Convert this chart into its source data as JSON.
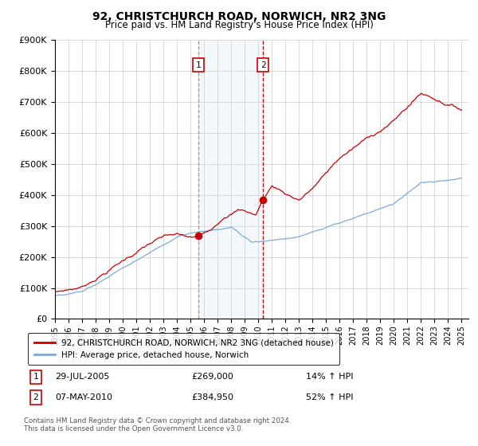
{
  "title": "92, CHRISTCHURCH ROAD, NORWICH, NR2 3NG",
  "subtitle": "Price paid vs. HM Land Registry's House Price Index (HPI)",
  "ylim": [
    0,
    900000
  ],
  "xlim_start": 1995.0,
  "xlim_end": 2025.5,
  "transaction1": {
    "date_num": 2005.57,
    "price": 269000,
    "label": "1",
    "date_str": "29-JUL-2005",
    "price_str": "£269,000",
    "hpi_str": "14% ↑ HPI"
  },
  "transaction2": {
    "date_num": 2010.35,
    "price": 384950,
    "label": "2",
    "date_str": "07-MAY-2010",
    "price_str": "£384,950",
    "hpi_str": "52% ↑ HPI"
  },
  "legend_line1": "92, CHRISTCHURCH ROAD, NORWICH, NR2 3NG (detached house)",
  "legend_line2": "HPI: Average price, detached house, Norwich",
  "footer1": "Contains HM Land Registry data © Crown copyright and database right 2024.",
  "footer2": "This data is licensed under the Open Government Licence v3.0.",
  "line_color_price": "#cc0000",
  "line_color_hpi": "#7aabdb",
  "vline1_color": "#999999",
  "vline2_color": "#cc0000",
  "shading_color": "#daeaf7",
  "background_color": "#ffffff",
  "grid_color": "#cccccc",
  "box_label_color": "#cc0000"
}
